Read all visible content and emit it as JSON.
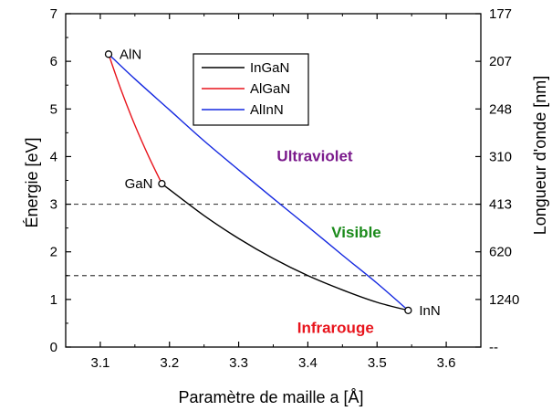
{
  "chart_data": {
    "type": "line",
    "xlabel": "Paramètre de maille a [Å]",
    "ylabel": "Énergie [eV]",
    "y2label": "Longueur d'onde [nm]",
    "xlim": [
      3.05,
      3.65
    ],
    "ylim": [
      0,
      7
    ],
    "xticks": [
      3.1,
      3.2,
      3.3,
      3.4,
      3.5,
      3.6
    ],
    "xtick_labels": [
      "3.1",
      "3.2",
      "3.3",
      "3.4",
      "3.5",
      "3.6"
    ],
    "yticks": [
      0,
      1,
      2,
      3,
      4,
      5,
      6,
      7
    ],
    "ytick_labels": [
      "0",
      "1",
      "2",
      "3",
      "4",
      "5",
      "6",
      "7"
    ],
    "y2ticks": [
      0,
      1,
      2,
      3,
      4,
      5,
      6,
      7
    ],
    "y2tick_labels": [
      "--",
      "1240",
      "620",
      "413",
      "310",
      "248",
      "207",
      "177"
    ],
    "grid": false,
    "legend_position": "top-center",
    "series": [
      {
        "name": "InGaN",
        "color": "#000000",
        "points": [
          [
            3.189,
            3.43
          ],
          [
            3.25,
            2.76
          ],
          [
            3.3,
            2.28
          ],
          [
            3.35,
            1.86
          ],
          [
            3.4,
            1.5
          ],
          [
            3.45,
            1.2
          ],
          [
            3.5,
            0.94
          ],
          [
            3.545,
            0.77
          ]
        ]
      },
      {
        "name": "AlGaN",
        "color": "#e8141c",
        "points": [
          [
            3.112,
            6.15
          ],
          [
            3.13,
            5.4
          ],
          [
            3.15,
            4.66
          ],
          [
            3.17,
            4.0
          ],
          [
            3.189,
            3.43
          ]
        ]
      },
      {
        "name": "AlInN",
        "color": "#1428e0",
        "points": [
          [
            3.112,
            6.15
          ],
          [
            3.15,
            5.63
          ],
          [
            3.2,
            4.98
          ],
          [
            3.25,
            4.33
          ],
          [
            3.3,
            3.72
          ],
          [
            3.35,
            3.12
          ],
          [
            3.4,
            2.53
          ],
          [
            3.45,
            1.93
          ],
          [
            3.5,
            1.34
          ],
          [
            3.545,
            0.77
          ]
        ]
      }
    ],
    "reference_lines": [
      {
        "axis": "y",
        "value": 3.0,
        "style": "dashed",
        "color": "#404040"
      },
      {
        "axis": "y",
        "value": 1.5,
        "style": "dashed",
        "color": "#404040"
      }
    ],
    "markers": [
      {
        "label": "AlN",
        "x": 3.112,
        "y": 6.15,
        "label_side": "right"
      },
      {
        "label": "GaN",
        "x": 3.189,
        "y": 3.43,
        "label_side": "left"
      },
      {
        "label": "InN",
        "x": 3.545,
        "y": 0.77,
        "label_side": "right"
      }
    ],
    "annotations": [
      {
        "text": "Ultraviolet",
        "x": 3.41,
        "y": 3.9,
        "color": "#7b1a8c"
      },
      {
        "text": "Visible",
        "x": 3.47,
        "y": 2.3,
        "color": "#1a8a1a"
      },
      {
        "text": "Infrarouge",
        "x": 3.44,
        "y": 0.3,
        "color": "#e8141c"
      }
    ]
  }
}
